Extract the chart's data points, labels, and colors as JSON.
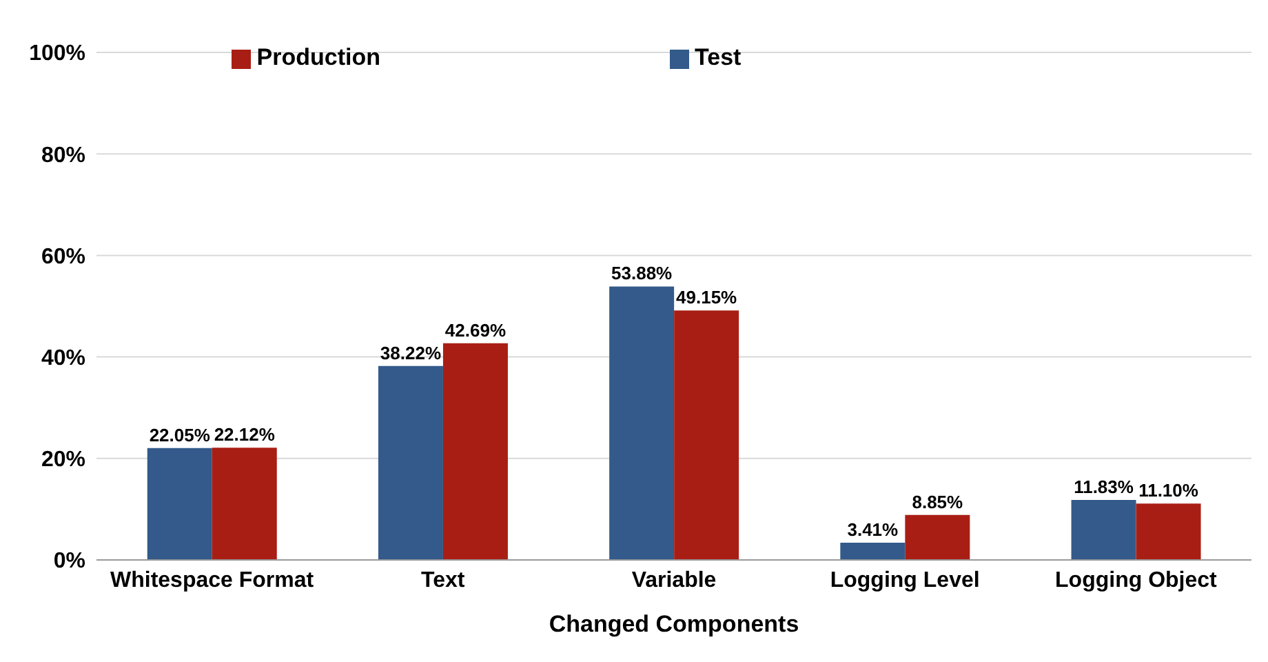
{
  "chart_data": {
    "type": "bar",
    "xlabel": "Changed Components",
    "categories": [
      "Whitespace Format",
      "Text",
      "Variable",
      "Logging Level",
      "Logging Object"
    ],
    "series": [
      {
        "name": "Test",
        "color": "#335a8a",
        "values": [
          22.05,
          38.22,
          53.88,
          3.41,
          11.83
        ],
        "value_labels": [
          "22.05%",
          "38.22%",
          "53.88%",
          "3.41%",
          "11.83%"
        ]
      },
      {
        "name": "Production",
        "color": "#a91e14",
        "values": [
          22.12,
          42.69,
          49.15,
          8.85,
          11.1
        ],
        "value_labels": [
          "22.12%",
          "42.69%",
          "49.15%",
          "8.85%",
          "11.10%"
        ]
      }
    ],
    "ylim": [
      0,
      100
    ],
    "yticks": [
      {
        "value": 0,
        "label": "0%"
      },
      {
        "value": 20,
        "label": "20%"
      },
      {
        "value": 40,
        "label": "40%"
      },
      {
        "value": 60,
        "label": "60%"
      },
      {
        "value": 80,
        "label": "80%"
      },
      {
        "value": 100,
        "label": "100%"
      }
    ],
    "grid": "y",
    "legend": "top"
  }
}
